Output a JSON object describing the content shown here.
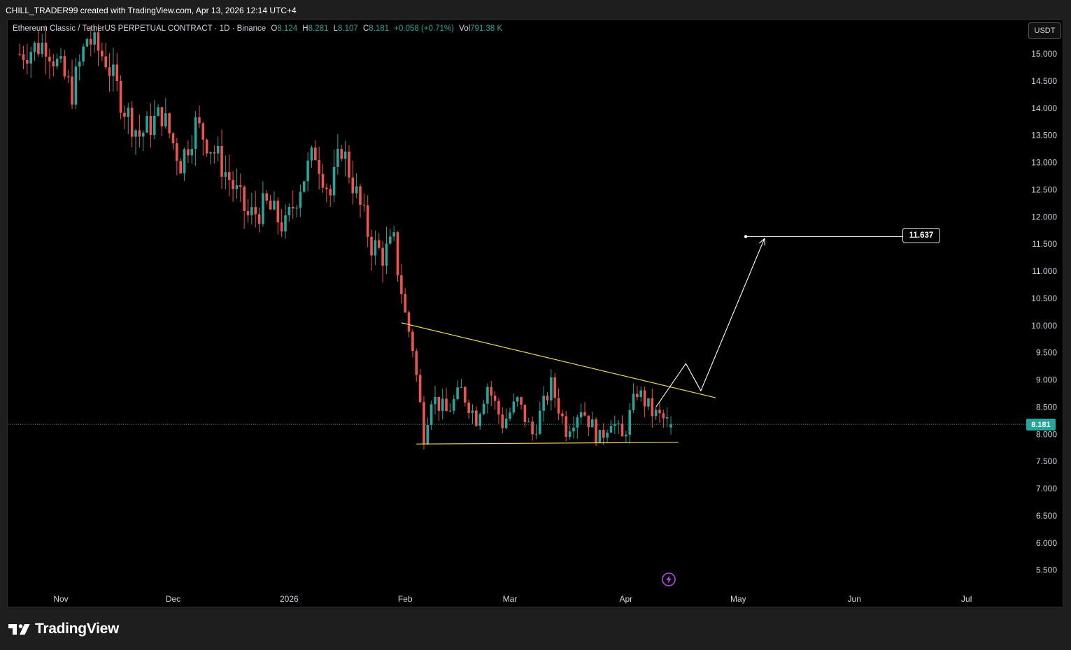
{
  "header": {
    "credit": "CHILL_TRADER99 created with TradingView.com, Apr 13, 2026 12:14 UTC+4"
  },
  "legend": {
    "symbol": "Ethereum Classic / TetherUS PERPETUAL CONTRACT · 1D · Binance",
    "open_label": "O",
    "open": "8.124",
    "high_label": "H",
    "high": "8.281",
    "low_label": "L",
    "low": "8.107",
    "close_label": "C",
    "close": "8.181",
    "change": "+0.058 (+0.71%)",
    "volume_label": "Vol",
    "volume": "791.38 K"
  },
  "currency_button": "USDT",
  "target_label": "11.637",
  "last_price": "8.181",
  "brand": "TradingView",
  "colors": {
    "up": "#26a69a",
    "down": "#ef5350",
    "trendline": "#e6d65a",
    "projection": "#ffffff",
    "background": "#000000"
  },
  "chart_data": {
    "type": "candlestick",
    "title": "",
    "xlabel": "",
    "ylabel": "",
    "y_ticks": [
      15,
      14.5,
      14,
      13.5,
      13,
      12.5,
      12,
      11.5,
      11,
      10.5,
      10,
      9.5,
      9,
      8.5,
      8,
      7.5,
      7,
      6.5,
      6,
      5.5
    ],
    "y_tick_labels": [
      "15.000",
      "14.500",
      "14.000",
      "13.500",
      "13.000",
      "12.500",
      "12.000",
      "11.500",
      "11.000",
      "10.500",
      "10.000",
      "9.500",
      "9.000",
      "8.500",
      "8.000",
      "7.500",
      "7.000",
      "6.500",
      "6.000",
      "5.500"
    ],
    "x_ticks": [
      {
        "date": "2025-11-01",
        "label": "Nov"
      },
      {
        "date": "2025-12-01",
        "label": "Dec"
      },
      {
        "date": "2026-01-01",
        "label": "2026"
      },
      {
        "date": "2026-02-01",
        "label": "Feb"
      },
      {
        "date": "2026-03-01",
        "label": "Mar"
      },
      {
        "date": "2026-04-01",
        "label": "Apr"
      },
      {
        "date": "2026-05-01",
        "label": "May"
      },
      {
        "date": "2026-06-01",
        "label": "Jun"
      },
      {
        "date": "2026-07-01",
        "label": "Jul"
      }
    ],
    "candles_start": "2025-10-21",
    "candles_end": "2026-04-13",
    "close_path": [
      {
        "date": "2025-10-21",
        "close": 15.0
      },
      {
        "date": "2025-10-28",
        "close": 15.2
      },
      {
        "date": "2025-11-04",
        "close": 14.3
      },
      {
        "date": "2025-11-08",
        "close": 15.3
      },
      {
        "date": "2025-11-13",
        "close": 14.9
      },
      {
        "date": "2025-11-18",
        "close": 14.0
      },
      {
        "date": "2025-11-22",
        "close": 13.5
      },
      {
        "date": "2025-11-28",
        "close": 13.9
      },
      {
        "date": "2025-12-03",
        "close": 13.0
      },
      {
        "date": "2025-12-07",
        "close": 13.7
      },
      {
        "date": "2025-12-12",
        "close": 13.2
      },
      {
        "date": "2025-12-16",
        "close": 12.7
      },
      {
        "date": "2025-12-21",
        "close": 12.0
      },
      {
        "date": "2025-12-26",
        "close": 12.2
      },
      {
        "date": "2025-12-31",
        "close": 11.8
      },
      {
        "date": "2026-01-04",
        "close": 12.6
      },
      {
        "date": "2026-01-08",
        "close": 13.2
      },
      {
        "date": "2026-01-12",
        "close": 12.4
      },
      {
        "date": "2026-01-15",
        "close": 13.3
      },
      {
        "date": "2026-01-19",
        "close": 12.4
      },
      {
        "date": "2026-01-23",
        "close": 11.5
      },
      {
        "date": "2026-01-26",
        "close": 11.3
      },
      {
        "date": "2026-01-29",
        "close": 11.5
      },
      {
        "date": "2026-02-01",
        "close": 10.2
      },
      {
        "date": "2026-02-03",
        "close": 9.6
      },
      {
        "date": "2026-02-06",
        "close": 8.0
      },
      {
        "date": "2026-02-08",
        "close": 8.7
      },
      {
        "date": "2026-02-12",
        "close": 8.4
      },
      {
        "date": "2026-02-16",
        "close": 8.8
      },
      {
        "date": "2026-02-20",
        "close": 8.3
      },
      {
        "date": "2026-02-23",
        "close": 8.9
      },
      {
        "date": "2026-02-27",
        "close": 8.2
      },
      {
        "date": "2026-03-03",
        "close": 8.6
      },
      {
        "date": "2026-03-07",
        "close": 8.0
      },
      {
        "date": "2026-03-12",
        "close": 8.9
      },
      {
        "date": "2026-03-16",
        "close": 8.1
      },
      {
        "date": "2026-03-20",
        "close": 8.5
      },
      {
        "date": "2026-03-25",
        "close": 7.9
      },
      {
        "date": "2026-03-28",
        "close": 8.3
      },
      {
        "date": "2026-03-31",
        "close": 7.9
      },
      {
        "date": "2026-04-04",
        "close": 8.8
      },
      {
        "date": "2026-04-08",
        "close": 8.4
      },
      {
        "date": "2026-04-13",
        "close": 8.181
      }
    ],
    "annotations": {
      "resistance_line": {
        "from": {
          "date": "2026-01-31",
          "price": 10.05
        },
        "to": {
          "date": "2026-04-25",
          "price": 8.67
        }
      },
      "support_line": {
        "from": {
          "date": "2026-02-04",
          "price": 7.82
        },
        "to": {
          "date": "2026-04-15",
          "price": 7.85
        }
      },
      "projection_path": [
        {
          "date": "2026-04-09",
          "price": 8.5
        },
        {
          "date": "2026-04-17",
          "price": 9.3
        },
        {
          "date": "2026-04-21",
          "price": 8.8
        },
        {
          "date": "2026-05-08",
          "price": 11.6
        }
      ],
      "target_line": {
        "from": "2026-05-03",
        "to": "2026-06-18",
        "price": 11.637
      },
      "last_price_line": 8.181
    }
  }
}
